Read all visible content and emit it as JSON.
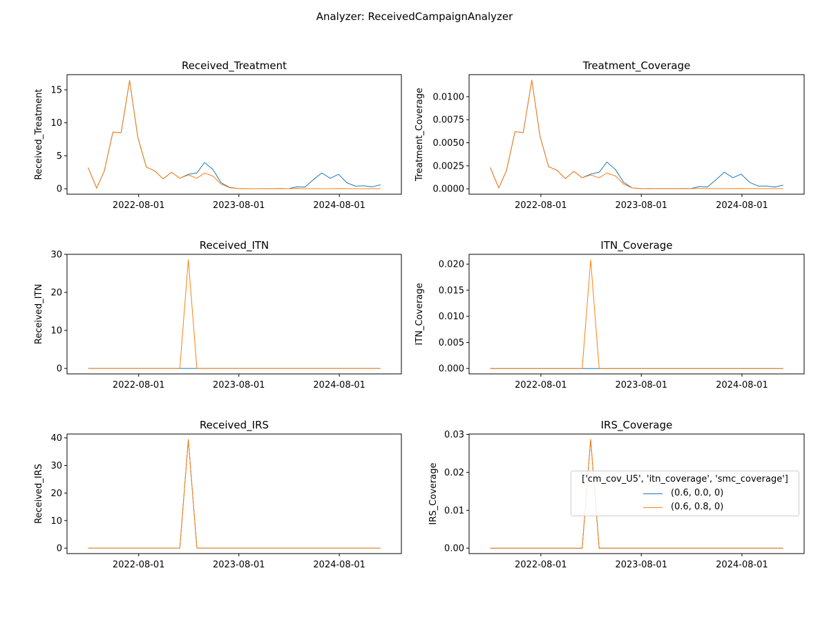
{
  "figure_title": "Analyzer: ReceivedCampaignAnalyzer",
  "legend": {
    "title": "['cm_cov_U5', 'itn_coverage', 'smc_coverage']",
    "entries": [
      {
        "label": "(0.6, 0.0, 0)",
        "color": "#1f77b4"
      },
      {
        "label": "(0.6, 0.8, 0)",
        "color": "#ff7f0e"
      }
    ]
  },
  "chart_data": [
    {
      "type": "line",
      "title": "Received_Treatment",
      "xlabel": "",
      "ylabel": "Received_Treatment",
      "x": [
        "2022-01",
        "2022-02",
        "2022-03",
        "2022-04",
        "2022-05",
        "2022-06",
        "2022-07",
        "2022-08",
        "2022-09",
        "2022-10",
        "2022-11",
        "2022-12",
        "2023-01",
        "2023-02",
        "2023-03",
        "2023-04",
        "2023-05",
        "2023-06",
        "2023-07",
        "2023-08",
        "2023-09",
        "2023-10",
        "2023-11",
        "2023-12",
        "2024-01",
        "2024-02",
        "2024-03",
        "2024-04",
        "2024-05",
        "2024-06",
        "2024-07",
        "2024-08",
        "2024-09",
        "2024-10",
        "2024-11",
        "2024-12"
      ],
      "xticks": [
        "2022-08-01",
        "2023-08-01",
        "2024-08-01"
      ],
      "yticks": [
        0,
        5,
        10,
        15
      ],
      "ytick_labels": [
        "0",
        "5",
        "10",
        "15"
      ],
      "ylim": [
        -0.82,
        17.3
      ],
      "series": [
        {
          "name": "(0.6, 0.0, 0)",
          "color": "#1f77b4",
          "values": [
            3.2,
            0.1,
            2.7,
            8.6,
            8.5,
            16.4,
            7.8,
            3.3,
            2.7,
            1.5,
            2.5,
            1.6,
            2.2,
            2.4,
            4.0,
            2.9,
            0.9,
            0.2,
            0.05,
            0.02,
            0.02,
            0.03,
            0.02,
            0.05,
            0.02,
            0.3,
            0.25,
            1.4,
            2.4,
            1.6,
            2.2,
            0.9,
            0.4,
            0.45,
            0.3,
            0.6
          ]
        },
        {
          "name": "(0.6, 0.8, 0)",
          "color": "#ff7f0e",
          "values": [
            3.2,
            0.1,
            2.7,
            8.6,
            8.5,
            16.4,
            7.8,
            3.3,
            2.7,
            1.5,
            2.5,
            1.6,
            2.1,
            1.6,
            2.4,
            1.9,
            0.7,
            0.15,
            0.03,
            0.01,
            0.02,
            0.02,
            0.01,
            0.03,
            0.02,
            0.05,
            0.02,
            0.03,
            0.02,
            0.02,
            0.05,
            0.03,
            0.02,
            0.02,
            0.02,
            0.03
          ]
        }
      ]
    },
    {
      "type": "line",
      "title": "Treatment_Coverage",
      "xlabel": "",
      "ylabel": "Treatment_Coverage",
      "x": [
        "2022-01",
        "2022-02",
        "2022-03",
        "2022-04",
        "2022-05",
        "2022-06",
        "2022-07",
        "2022-08",
        "2022-09",
        "2022-10",
        "2022-11",
        "2022-12",
        "2023-01",
        "2023-02",
        "2023-03",
        "2023-04",
        "2023-05",
        "2023-06",
        "2023-07",
        "2023-08",
        "2023-09",
        "2023-10",
        "2023-11",
        "2023-12",
        "2024-01",
        "2024-02",
        "2024-03",
        "2024-04",
        "2024-05",
        "2024-06",
        "2024-07",
        "2024-08",
        "2024-09",
        "2024-10",
        "2024-11",
        "2024-12"
      ],
      "xticks": [
        "2022-08-01",
        "2023-08-01",
        "2024-08-01"
      ],
      "yticks": [
        0,
        0.0025,
        0.005,
        0.0075,
        0.01
      ],
      "ytick_labels": [
        "0.0000",
        "0.0025",
        "0.0050",
        "0.0075",
        "0.0100"
      ],
      "ylim": [
        -0.000585,
        0.01239
      ],
      "series": [
        {
          "name": "(0.6, 0.0, 0)",
          "color": "#1f77b4",
          "values": [
            0.0023,
            0.0001,
            0.002,
            0.0062,
            0.0061,
            0.0118,
            0.0057,
            0.0024,
            0.002,
            0.0011,
            0.0019,
            0.0012,
            0.0016,
            0.0018,
            0.0029,
            0.0021,
            0.0007,
            0.0001,
            4e-05,
            2e-05,
            2e-05,
            2e-05,
            2e-05,
            4e-05,
            2e-05,
            0.00025,
            0.0002,
            0.001,
            0.0018,
            0.0012,
            0.0016,
            0.0007,
            0.0003,
            0.0003,
            0.0002,
            0.0004
          ]
        },
        {
          "name": "(0.6, 0.8, 0)",
          "color": "#ff7f0e",
          "values": [
            0.0023,
            0.0001,
            0.002,
            0.0062,
            0.0061,
            0.0118,
            0.0057,
            0.0024,
            0.002,
            0.0011,
            0.0019,
            0.0012,
            0.0015,
            0.0012,
            0.0017,
            0.0014,
            0.0005,
            0.0001,
            2e-05,
            1e-05,
            2e-05,
            2e-05,
            1e-05,
            2e-05,
            2e-05,
            4e-05,
            2e-05,
            2e-05,
            2e-05,
            2e-05,
            4e-05,
            2e-05,
            2e-05,
            2e-05,
            2e-05,
            2e-05
          ]
        }
      ]
    },
    {
      "type": "line",
      "title": "Received_ITN",
      "xlabel": "",
      "ylabel": "Received_ITN",
      "x": [
        "2022-01",
        "2022-02",
        "2022-03",
        "2022-04",
        "2022-05",
        "2022-06",
        "2022-07",
        "2022-08",
        "2022-09",
        "2022-10",
        "2022-11",
        "2022-12",
        "2023-01",
        "2023-02",
        "2023-03",
        "2023-04",
        "2023-05",
        "2023-06",
        "2023-07",
        "2023-08",
        "2023-09",
        "2023-10",
        "2023-11",
        "2023-12",
        "2024-01",
        "2024-02",
        "2024-03",
        "2024-04",
        "2024-05",
        "2024-06",
        "2024-07",
        "2024-08",
        "2024-09",
        "2024-10",
        "2024-11",
        "2024-12"
      ],
      "xticks": [
        "2022-08-01",
        "2023-08-01",
        "2024-08-01"
      ],
      "yticks": [
        0,
        10,
        20,
        30
      ],
      "ytick_labels": [
        "0",
        "10",
        "20",
        "30"
      ],
      "ylim": [
        -1.43,
        30.0
      ],
      "series": [
        {
          "name": "(0.6, 0.0, 0)",
          "color": "#1f77b4",
          "values": [
            0,
            0,
            0,
            0,
            0,
            0,
            0,
            0,
            0,
            0,
            0,
            0,
            0,
            0,
            0,
            0,
            0,
            0,
            0,
            0,
            0,
            0,
            0,
            0,
            0,
            0,
            0,
            0,
            0,
            0,
            0,
            0,
            0,
            0,
            0,
            0
          ]
        },
        {
          "name": "(0.6, 0.8, 0)",
          "color": "#ff7f0e",
          "values": [
            0,
            0,
            0,
            0,
            0,
            0,
            0,
            0,
            0,
            0,
            0,
            0,
            28.6,
            0,
            0,
            0,
            0,
            0,
            0,
            0,
            0,
            0,
            0,
            0,
            0,
            0,
            0,
            0,
            0,
            0,
            0,
            0,
            0,
            0,
            0,
            0
          ]
        }
      ]
    },
    {
      "type": "line",
      "title": "ITN_Coverage",
      "xlabel": "",
      "ylabel": "ITN_Coverage",
      "x": [
        "2022-01",
        "2022-02",
        "2022-03",
        "2022-04",
        "2022-05",
        "2022-06",
        "2022-07",
        "2022-08",
        "2022-09",
        "2022-10",
        "2022-11",
        "2022-12",
        "2023-01",
        "2023-02",
        "2023-03",
        "2023-04",
        "2023-05",
        "2023-06",
        "2023-07",
        "2023-08",
        "2023-09",
        "2023-10",
        "2023-11",
        "2023-12",
        "2024-01",
        "2024-02",
        "2024-03",
        "2024-04",
        "2024-05",
        "2024-06",
        "2024-07",
        "2024-08",
        "2024-09",
        "2024-10",
        "2024-11",
        "2024-12"
      ],
      "xticks": [
        "2022-08-01",
        "2023-08-01",
        "2024-08-01"
      ],
      "yticks": [
        0,
        0.005,
        0.01,
        0.015,
        0.02
      ],
      "ytick_labels": [
        "0.000",
        "0.005",
        "0.010",
        "0.015",
        "0.020"
      ],
      "ylim": [
        -0.00104,
        0.02188
      ],
      "series": [
        {
          "name": "(0.6, 0.0, 0)",
          "color": "#1f77b4",
          "values": [
            0,
            0,
            0,
            0,
            0,
            0,
            0,
            0,
            0,
            0,
            0,
            0,
            0,
            0,
            0,
            0,
            0,
            0,
            0,
            0,
            0,
            0,
            0,
            0,
            0,
            0,
            0,
            0,
            0,
            0,
            0,
            0,
            0,
            0,
            0,
            0
          ]
        },
        {
          "name": "(0.6, 0.8, 0)",
          "color": "#ff7f0e",
          "values": [
            0,
            0,
            0,
            0,
            0,
            0,
            0,
            0,
            0,
            0,
            0,
            0,
            0.0208,
            0,
            0,
            0,
            0,
            0,
            0,
            0,
            0,
            0,
            0,
            0,
            0,
            0,
            0,
            0,
            0,
            0,
            0,
            0,
            0,
            0,
            0,
            0
          ]
        }
      ]
    },
    {
      "type": "line",
      "title": "Received_IRS",
      "xlabel": "",
      "ylabel": "Received_IRS",
      "x": [
        "2022-01",
        "2022-02",
        "2022-03",
        "2022-04",
        "2022-05",
        "2022-06",
        "2022-07",
        "2022-08",
        "2022-09",
        "2022-10",
        "2022-11",
        "2022-12",
        "2023-01",
        "2023-02",
        "2023-03",
        "2023-04",
        "2023-05",
        "2023-06",
        "2023-07",
        "2023-08",
        "2023-09",
        "2023-10",
        "2023-11",
        "2023-12",
        "2024-01",
        "2024-02",
        "2024-03",
        "2024-04",
        "2024-05",
        "2024-06",
        "2024-07",
        "2024-08",
        "2024-09",
        "2024-10",
        "2024-11",
        "2024-12"
      ],
      "xticks": [
        "2022-08-01",
        "2023-08-01",
        "2024-08-01"
      ],
      "yticks": [
        0,
        10,
        20,
        30,
        40
      ],
      "ytick_labels": [
        "0",
        "10",
        "20",
        "30",
        "40"
      ],
      "ylim": [
        -1.97,
        41.4
      ],
      "series": [
        {
          "name": "(0.6, 0.0, 0)",
          "color": "#1f77b4",
          "values": [
            0,
            0,
            0,
            0,
            0,
            0,
            0,
            0,
            0,
            0,
            0,
            0,
            39.4,
            0,
            0,
            0,
            0,
            0,
            0,
            0,
            0,
            0,
            0,
            0,
            0,
            0,
            0,
            0,
            0,
            0,
            0,
            0,
            0,
            0,
            0,
            0
          ]
        },
        {
          "name": "(0.6, 0.8, 0)",
          "color": "#ff7f0e",
          "values": [
            0,
            0,
            0,
            0,
            0,
            0,
            0,
            0,
            0,
            0,
            0,
            0,
            39.4,
            0,
            0,
            0,
            0,
            0,
            0,
            0,
            0,
            0,
            0,
            0,
            0,
            0,
            0,
            0,
            0,
            0,
            0,
            0,
            0,
            0,
            0,
            0
          ]
        }
      ]
    },
    {
      "type": "line",
      "title": "IRS_Coverage",
      "xlabel": "",
      "ylabel": "IRS_Coverage",
      "x": [
        "2022-01",
        "2022-02",
        "2022-03",
        "2022-04",
        "2022-05",
        "2022-06",
        "2022-07",
        "2022-08",
        "2022-09",
        "2022-10",
        "2022-11",
        "2022-12",
        "2023-01",
        "2023-02",
        "2023-03",
        "2023-04",
        "2023-05",
        "2023-06",
        "2023-07",
        "2023-08",
        "2023-09",
        "2023-10",
        "2023-11",
        "2023-12",
        "2024-01",
        "2024-02",
        "2024-03",
        "2024-04",
        "2024-05",
        "2024-06",
        "2024-07",
        "2024-08",
        "2024-09",
        "2024-10",
        "2024-11",
        "2024-12"
      ],
      "xticks": [
        "2022-08-01",
        "2023-08-01",
        "2024-08-01"
      ],
      "yticks": [
        0,
        0.01,
        0.02,
        0.03
      ],
      "ytick_labels": [
        "0.00",
        "0.01",
        "0.02",
        "0.03"
      ],
      "ylim": [
        -0.00143,
        0.0301
      ],
      "series": [
        {
          "name": "(0.6, 0.0, 0)",
          "color": "#1f77b4",
          "values": [
            0,
            0,
            0,
            0,
            0,
            0,
            0,
            0,
            0,
            0,
            0,
            0,
            0.0287,
            0,
            0,
            0,
            0,
            0,
            0,
            0,
            0,
            0,
            0,
            0,
            0,
            0,
            0,
            0,
            0,
            0,
            0,
            0,
            0,
            0,
            0,
            0
          ]
        },
        {
          "name": "(0.6, 0.8, 0)",
          "color": "#ff7f0e",
          "values": [
            0,
            0,
            0,
            0,
            0,
            0,
            0,
            0,
            0,
            0,
            0,
            0,
            0.0287,
            0,
            0,
            0,
            0,
            0,
            0,
            0,
            0,
            0,
            0,
            0,
            0,
            0,
            0,
            0,
            0,
            0,
            0,
            0,
            0,
            0,
            0,
            0
          ]
        }
      ]
    }
  ]
}
